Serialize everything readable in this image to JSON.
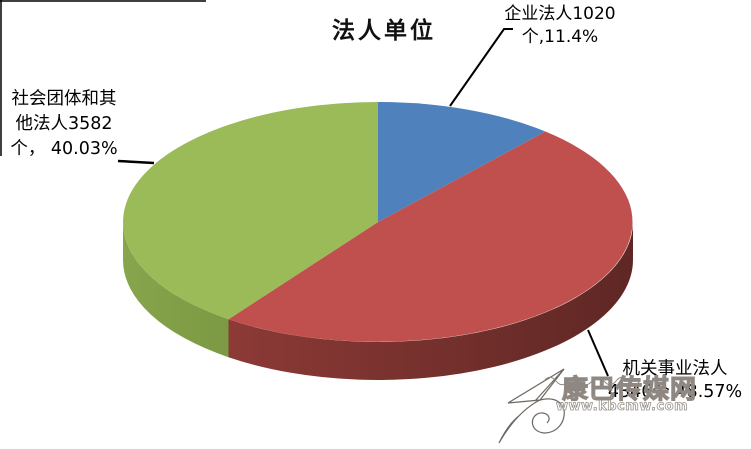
{
  "chart_data": {
    "type": "pie",
    "style": "3d",
    "title": "法人单位",
    "unit": "个",
    "start_angle_deg": 0,
    "direction": "clockwise",
    "legend": "none",
    "slices": [
      {
        "id": "enterprise",
        "name": "企业法人",
        "count": 1020,
        "percent": 11.4,
        "color": "#4F81BD",
        "side_colors": [
          "#3A6494",
          "#2F5278"
        ]
      },
      {
        "id": "government",
        "name": "机关事业法人",
        "count": 4346,
        "percent": 48.57,
        "color": "#C0504D",
        "side_colors": [
          "#8C3A36",
          "#5F2724"
        ]
      },
      {
        "id": "social",
        "name": "社会团体和其他法人",
        "count": 3582,
        "percent": 40.03,
        "color": "#9BBB59",
        "side_colors": [
          "#87A54C",
          "#7C9943"
        ]
      }
    ]
  },
  "callouts": {
    "enterprise": {
      "line1": "企业法人1020",
      "line2": "个,11.4%"
    },
    "social": {
      "line1": "社会团体和其",
      "line2": "他法人3582",
      "line3": "个， 40.03%"
    },
    "government": {
      "line1": "机关事业法人",
      "line2": "4346个,48.57%"
    }
  },
  "watermark": {
    "site_name": "康巴传媒网",
    "url": "www.kbcmw.com"
  }
}
